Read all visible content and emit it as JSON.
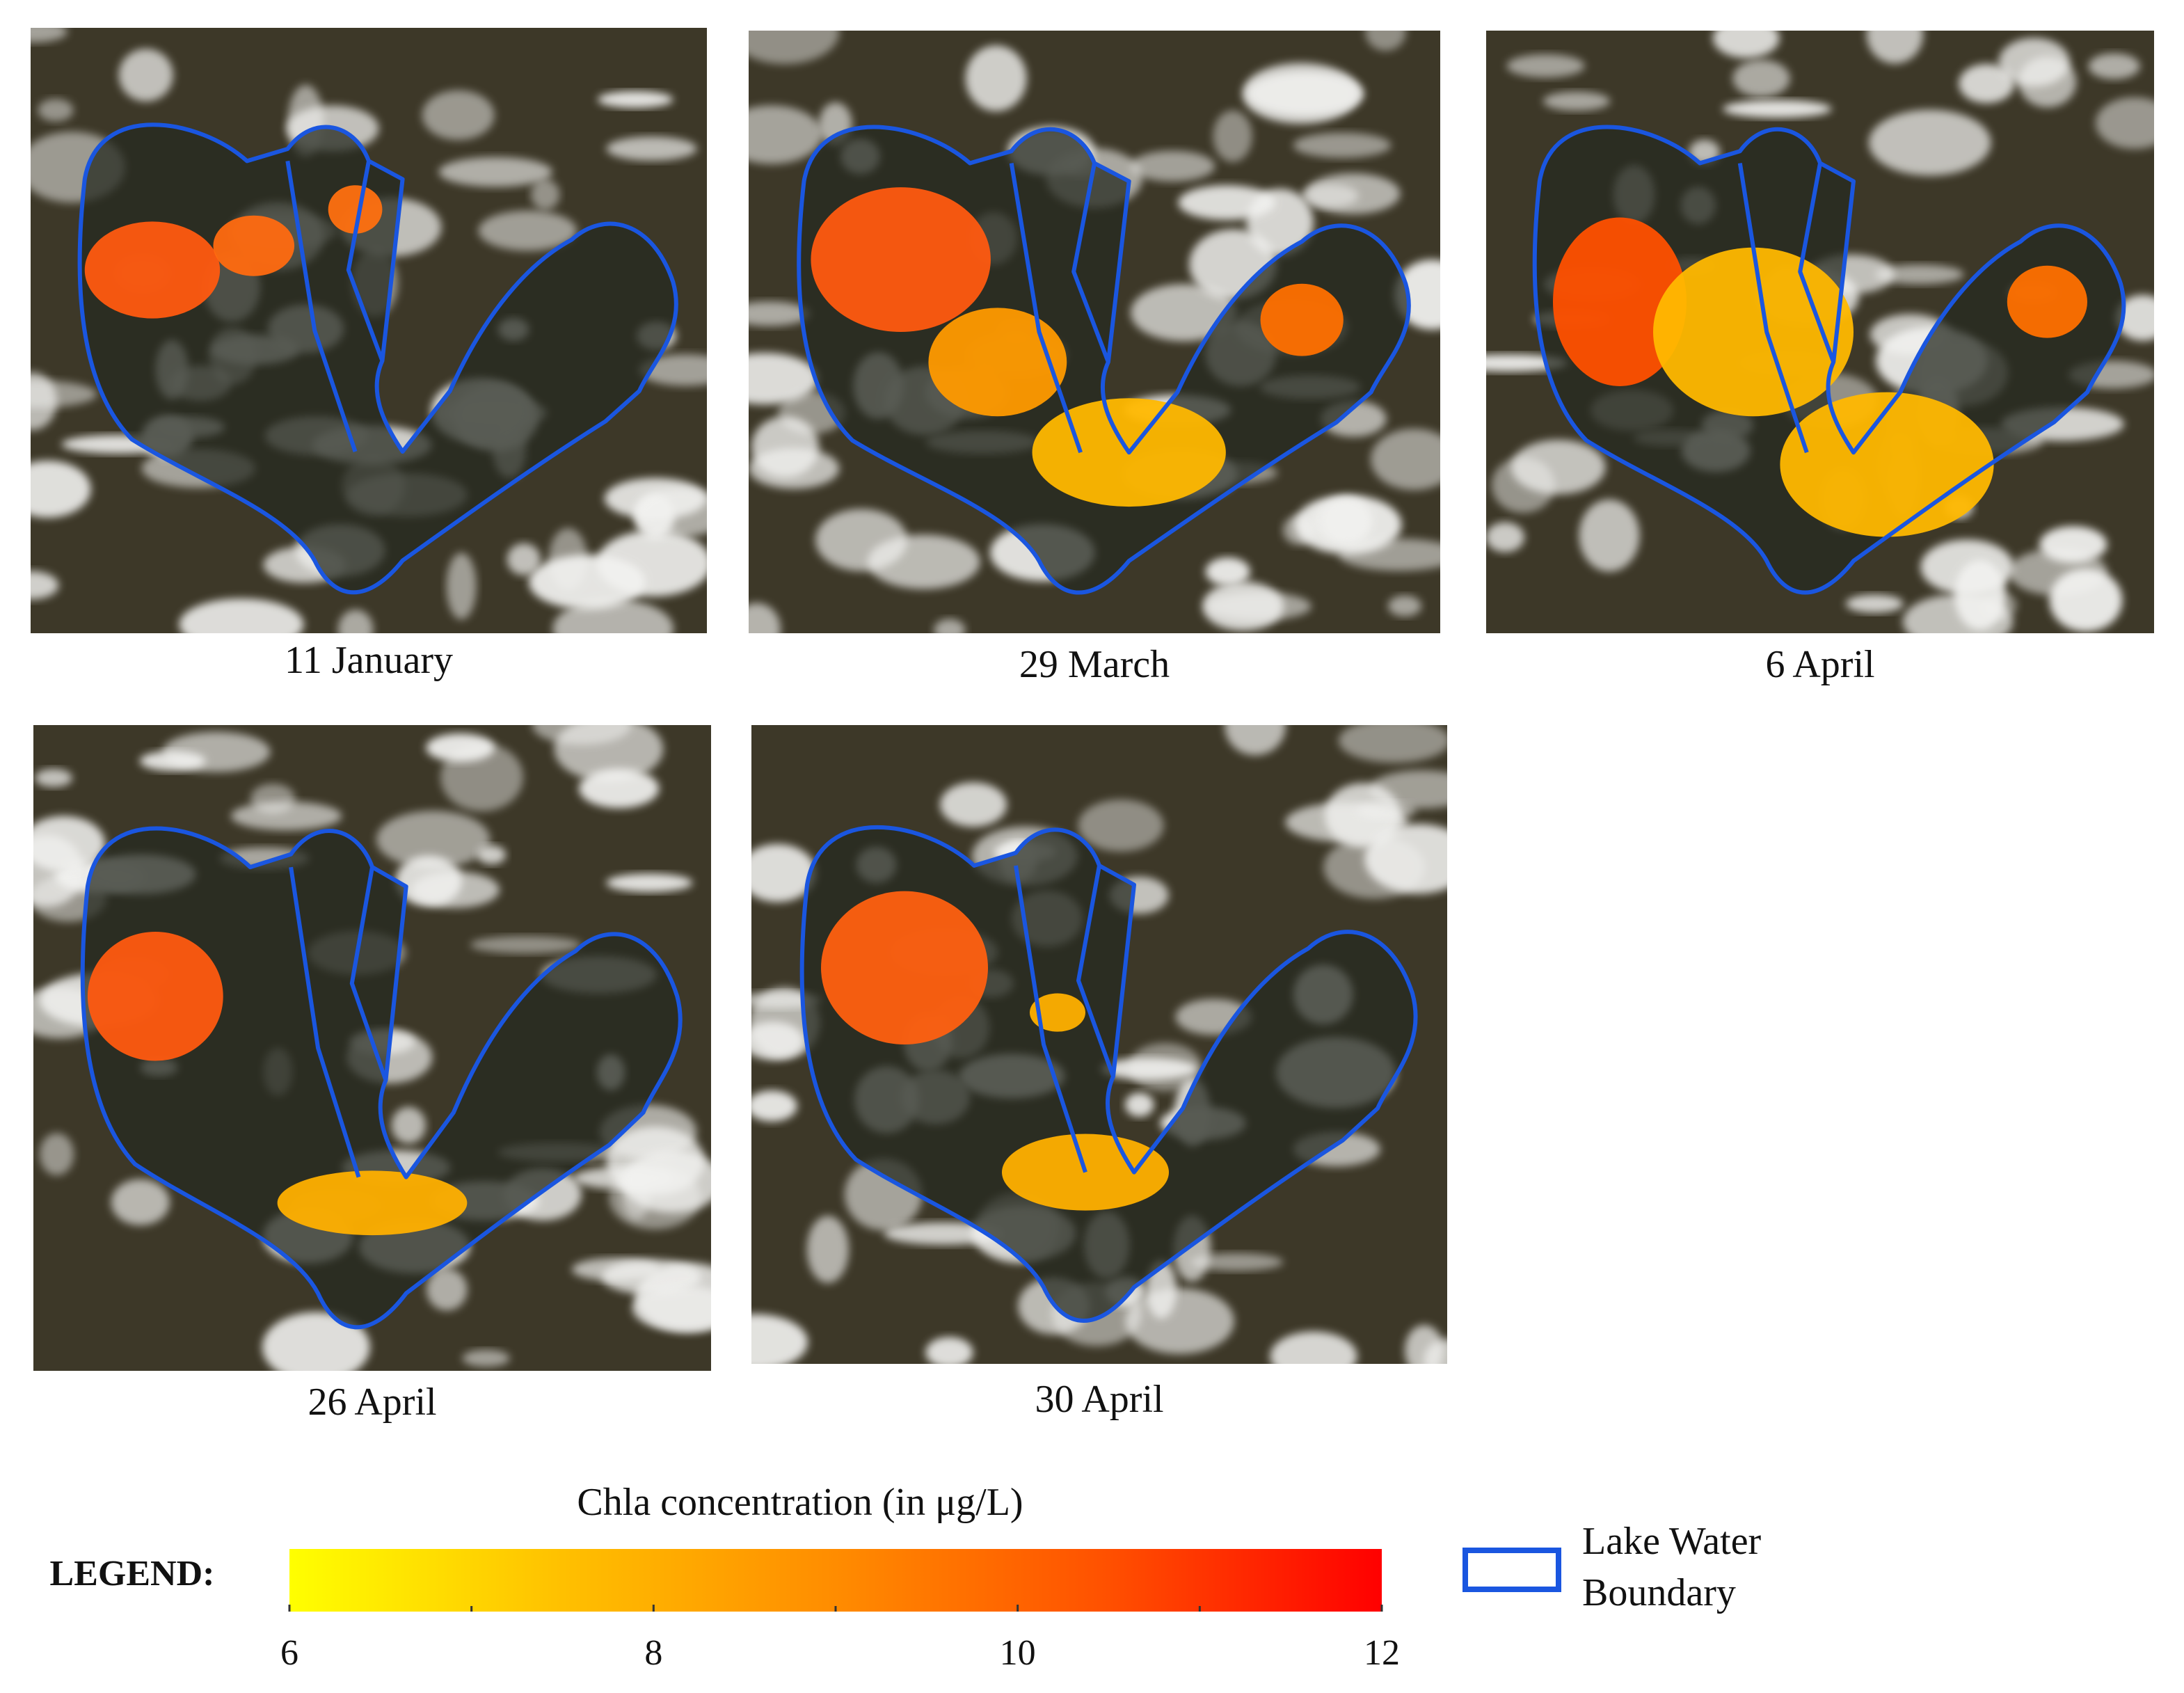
{
  "panels": [
    {
      "label": "11 January"
    },
    {
      "label": "29 March"
    },
    {
      "label": "6 April"
    },
    {
      "label": "26 April"
    },
    {
      "label": "30 April"
    }
  ],
  "legend": {
    "heading": "LEGEND:",
    "colorbar": {
      "title": "Chla concentration (in μg/L)",
      "lim": [
        6,
        12
      ],
      "ticks": [
        6,
        8,
        10,
        12
      ],
      "minor_ticks": [
        7,
        9,
        11
      ],
      "colors": [
        "#ffff00",
        "#ffc000",
        "#ff8c00",
        "#ff5000",
        "#ff0000"
      ]
    },
    "boundary": {
      "label_lines": [
        "Lake Water",
        "Boundary"
      ],
      "color": "#1a56e0"
    }
  }
}
